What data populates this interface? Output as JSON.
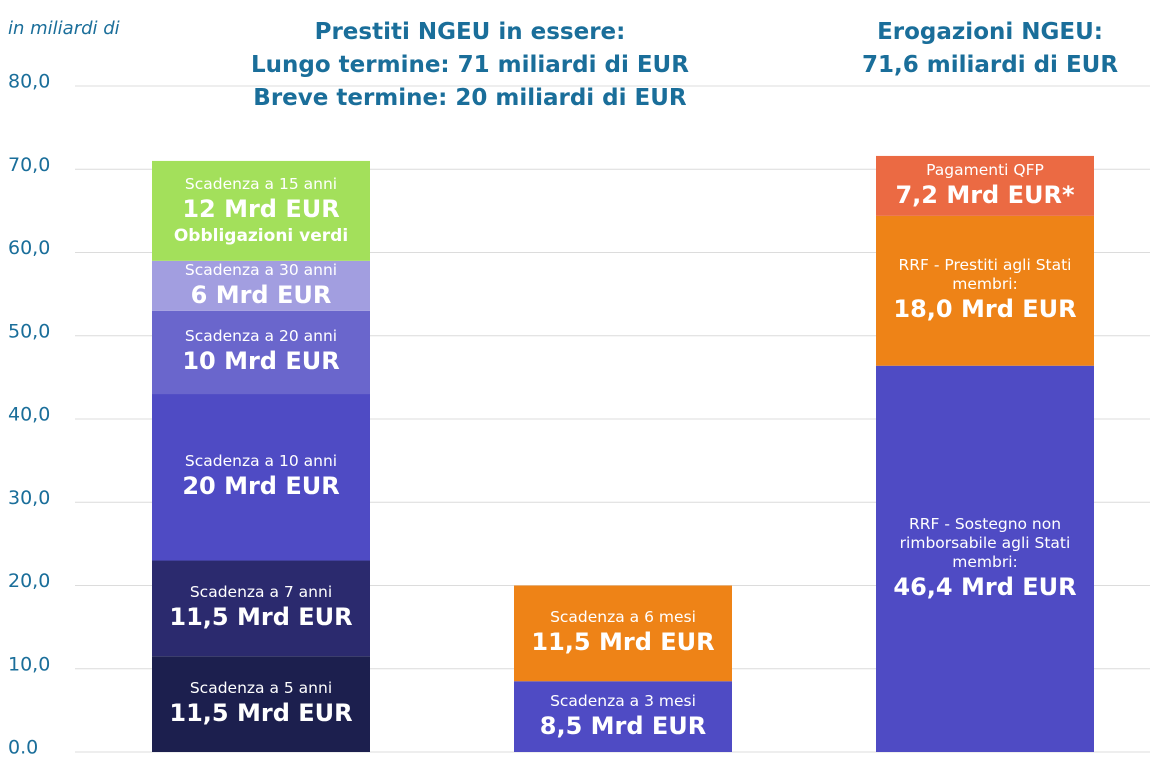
{
  "chart_data": {
    "type": "stacked_bar",
    "y_axis_label": "in miliardi di",
    "headings": [
      {
        "lines": [
          "Prestiti NGEU in essere:",
          "Lungo termine: 71 miliardi di EUR",
          "Breve termine: 20 miliardi di EUR"
        ]
      },
      {
        "lines": [
          "Erogazioni NGEU:",
          "71,6 miliardi di EUR"
        ]
      }
    ],
    "ylim": [
      0,
      80
    ],
    "yticks": [
      {
        "value": 0,
        "label": "0.0"
      },
      {
        "value": 10,
        "label": "10,0"
      },
      {
        "value": 20,
        "label": "20,0"
      },
      {
        "value": 30,
        "label": "30,0"
      },
      {
        "value": 40,
        "label": "40,0"
      },
      {
        "value": 50,
        "label": "50,0"
      },
      {
        "value": 60,
        "label": "60,0"
      },
      {
        "value": 70,
        "label": "70,0"
      },
      {
        "value": 80,
        "label": "80,0"
      }
    ],
    "grid": true,
    "bars": [
      {
        "segments": [
          {
            "label": "Scadenza a 5 anni",
            "value": 11.5,
            "value_label": "11,5 Mrd EUR",
            "color": "#1c1f4e"
          },
          {
            "label": "Scadenza a 7 anni",
            "value": 11.5,
            "value_label": "11,5 Mrd EUR",
            "color": "#2b2a6e"
          },
          {
            "label": "Scadenza a 10 anni",
            "value": 20,
            "value_label": "20 Mrd EUR",
            "color": "#4f4bc4"
          },
          {
            "label": "Scadenza a 20 anni",
            "value": 10,
            "value_label": "10 Mrd EUR",
            "color": "#6a66cc"
          },
          {
            "label": "Scadenza a 30 anni",
            "value": 6,
            "value_label": "6 Mrd EUR",
            "color": "#a29ee0"
          },
          {
            "label": "Scadenza a 15 anni",
            "value": 12,
            "value_label": "12 Mrd EUR",
            "note": "Obbligazioni verdi",
            "color": "#a3e05b"
          }
        ]
      },
      {
        "segments": [
          {
            "label": "Scadenza a 3 mesi",
            "value": 8.5,
            "value_label": "8,5 Mrd EUR",
            "color": "#4f4bc4"
          },
          {
            "label": "Scadenza a 6 mesi",
            "value": 11.5,
            "value_label": "11,5 Mrd EUR",
            "color": "#ee8317"
          }
        ]
      },
      {
        "segments": [
          {
            "label": "RRF - Sostegno non rimborsabile agli Stati membri:",
            "value": 46.4,
            "value_label": "46,4 Mrd EUR",
            "color": "#4f4bc4"
          },
          {
            "label": "RRF - Prestiti agli Stati membri:",
            "value": 18.0,
            "value_label": "18,0 Mrd EUR",
            "color": "#ee8317"
          },
          {
            "label": "Pagamenti QFP",
            "value": 7.2,
            "value_label": "7,2 Mrd EUR*",
            "color": "#eb6a43"
          }
        ]
      }
    ]
  }
}
